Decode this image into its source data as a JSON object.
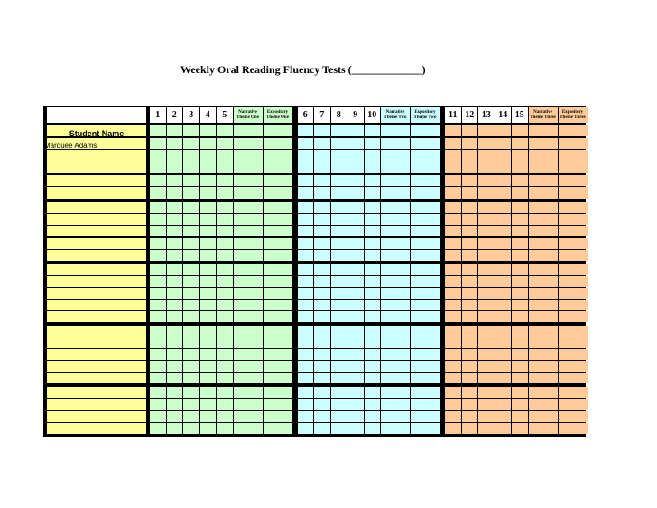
{
  "title": "Weekly Oral Reading Fluency Tests  (_____________)",
  "student_column_header": "Student Name",
  "students": [
    "Marquee Adams"
  ],
  "columns": [
    {
      "label": "1",
      "group": "g"
    },
    {
      "label": "2",
      "group": "g"
    },
    {
      "label": "3",
      "group": "g"
    },
    {
      "label": "4",
      "group": "g"
    },
    {
      "label": "5",
      "group": "g"
    },
    {
      "label": "Narrative Theme One",
      "group": "g",
      "wide": true
    },
    {
      "label": "Expository Theme One",
      "group": "g",
      "wide": true
    },
    {
      "label": "6",
      "group": "b"
    },
    {
      "label": "7",
      "group": "b"
    },
    {
      "label": "8",
      "group": "b"
    },
    {
      "label": "9",
      "group": "b"
    },
    {
      "label": "10",
      "group": "b"
    },
    {
      "label": "Narrative Theme Two",
      "group": "b",
      "wide": true
    },
    {
      "label": "Expository Theme Two",
      "group": "b",
      "wide": true
    },
    {
      "label": "11",
      "group": "o"
    },
    {
      "label": "12",
      "group": "o"
    },
    {
      "label": "13",
      "group": "o"
    },
    {
      "label": "14",
      "group": "o"
    },
    {
      "label": "15",
      "group": "o"
    },
    {
      "label": "Narrative Theme Three",
      "group": "o",
      "wide": true
    },
    {
      "label": "Expository Theme Three",
      "group": "o",
      "wide": true
    }
  ],
  "colors": {
    "yellow": "#ffff99",
    "green": "#ccffcc",
    "blue": "#ccffff",
    "orange": "#ffcc99",
    "grid": "#000000"
  }
}
